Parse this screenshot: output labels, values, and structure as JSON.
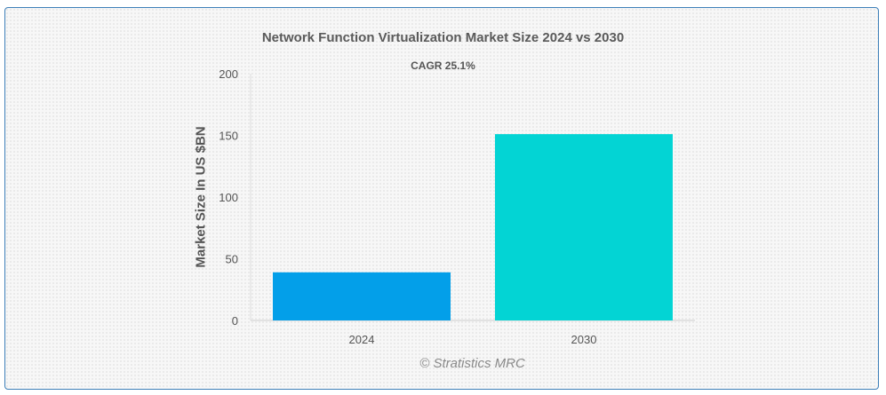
{
  "chart_data": {
    "type": "bar",
    "title": "Network Function Virtualization Market Size 2024 vs 2030",
    "subtitle": "CAGR 25.1%",
    "xlabel": "",
    "ylabel": "Market Size In US $BN",
    "categories": [
      "2024",
      "2030"
    ],
    "values": [
      39,
      151
    ],
    "colors": [
      "#039fe9",
      "#03d4d4"
    ],
    "ylim": [
      0,
      200
    ],
    "yticks": [
      0,
      50,
      100,
      150,
      200
    ],
    "grid": false,
    "legend": "none"
  },
  "credit": "© Stratistics MRC"
}
